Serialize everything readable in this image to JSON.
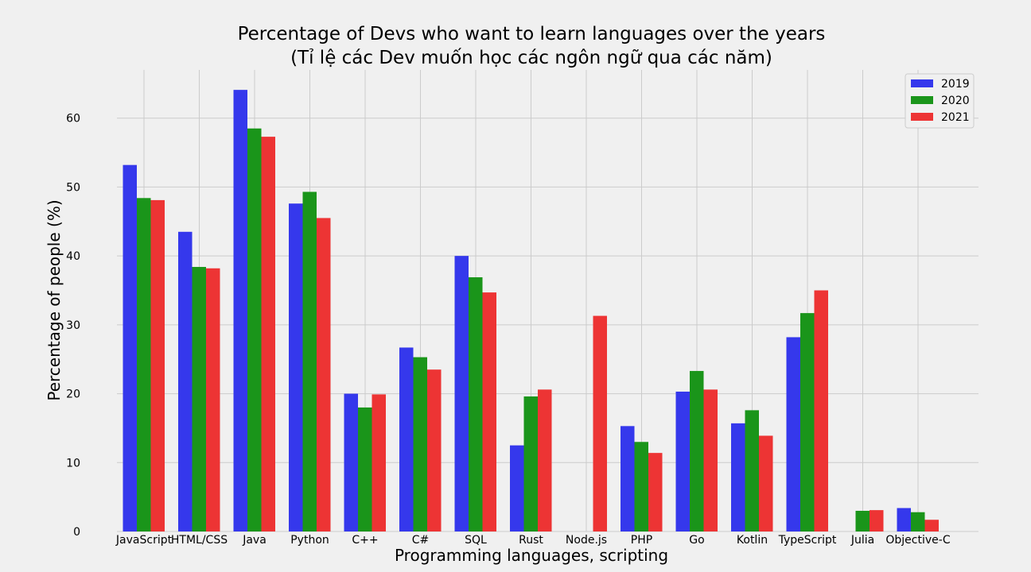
{
  "chart_data": {
    "type": "bar",
    "title": "Percentage of Devs who want to learn languages over the years",
    "subtitle": "(Tỉ lệ các Dev muốn học các ngôn ngữ qua các năm)",
    "xlabel": "Programming languages, scripting",
    "ylabel": "Percentage of people (%)",
    "categories": [
      "JavaScript",
      "HTML/CSS",
      "Java",
      "Python",
      "C++",
      "C#",
      "SQL",
      "Rust",
      "Node.js",
      "PHP",
      "Go",
      "Kotlin",
      "TypeScript",
      "Julia",
      "Objective-C"
    ],
    "series": [
      {
        "name": "2019",
        "color": "#3538ec",
        "values": [
          53.2,
          43.5,
          64.1,
          47.6,
          20.0,
          26.7,
          40.0,
          12.5,
          0,
          15.3,
          20.3,
          15.7,
          28.2,
          0,
          3.4
        ]
      },
      {
        "name": "2020",
        "color": "#1a951a",
        "values": [
          48.4,
          38.4,
          58.5,
          49.3,
          18.0,
          25.3,
          36.9,
          19.6,
          0,
          13.0,
          23.3,
          17.6,
          31.7,
          3.0,
          2.8
        ]
      },
      {
        "name": "2021",
        "color": "#ed3434",
        "values": [
          48.1,
          38.2,
          57.3,
          45.5,
          19.9,
          23.5,
          34.7,
          20.6,
          31.3,
          11.4,
          20.6,
          13.9,
          35.0,
          3.1,
          1.7
        ]
      }
    ],
    "yticks": [
      0,
      10,
      20,
      30,
      40,
      50,
      60
    ],
    "ylim": [
      0,
      67
    ],
    "grid": true,
    "legend_position": "top-right"
  }
}
